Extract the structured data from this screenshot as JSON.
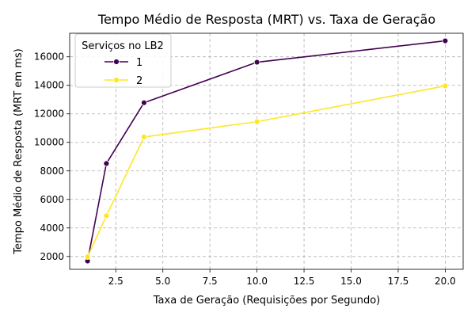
{
  "chart_data": {
    "type": "line",
    "title": "Tempo Médio de Resposta (MRT) vs. Taxa de Geração",
    "xlabel": "Taxa de Geração (Requisições por Segundo)",
    "ylabel": "Tempo Médio de Resposta (MRT em ms)",
    "xlim": [
      0.05,
      20.95
    ],
    "ylim": [
      1100,
      17650
    ],
    "xticks": [
      2.5,
      5.0,
      7.5,
      10.0,
      12.5,
      15.0,
      17.5,
      20.0
    ],
    "xtick_labels": [
      "2.5",
      "5.0",
      "7.5",
      "10.0",
      "12.5",
      "15.0",
      "17.5",
      "20.0"
    ],
    "yticks": [
      2000,
      4000,
      6000,
      8000,
      10000,
      12000,
      14000,
      16000
    ],
    "ytick_labels": [
      "2000",
      "4000",
      "6000",
      "8000",
      "10000",
      "12000",
      "14000",
      "16000"
    ],
    "grid": true,
    "grid_style": "dashed",
    "legend_title": "Serviços no LB2",
    "legend_position": "top-left",
    "series": [
      {
        "name": "1",
        "color": "#440154",
        "marker": "circle",
        "x": [
          1,
          2,
          4,
          10,
          20
        ],
        "y": [
          1680,
          8520,
          12780,
          15620,
          17120
        ]
      },
      {
        "name": "2",
        "color": "#fde725",
        "marker": "circle",
        "x": [
          1,
          2,
          4,
          10,
          20
        ],
        "y": [
          1980,
          4850,
          10380,
          11450,
          13960
        ]
      }
    ]
  }
}
